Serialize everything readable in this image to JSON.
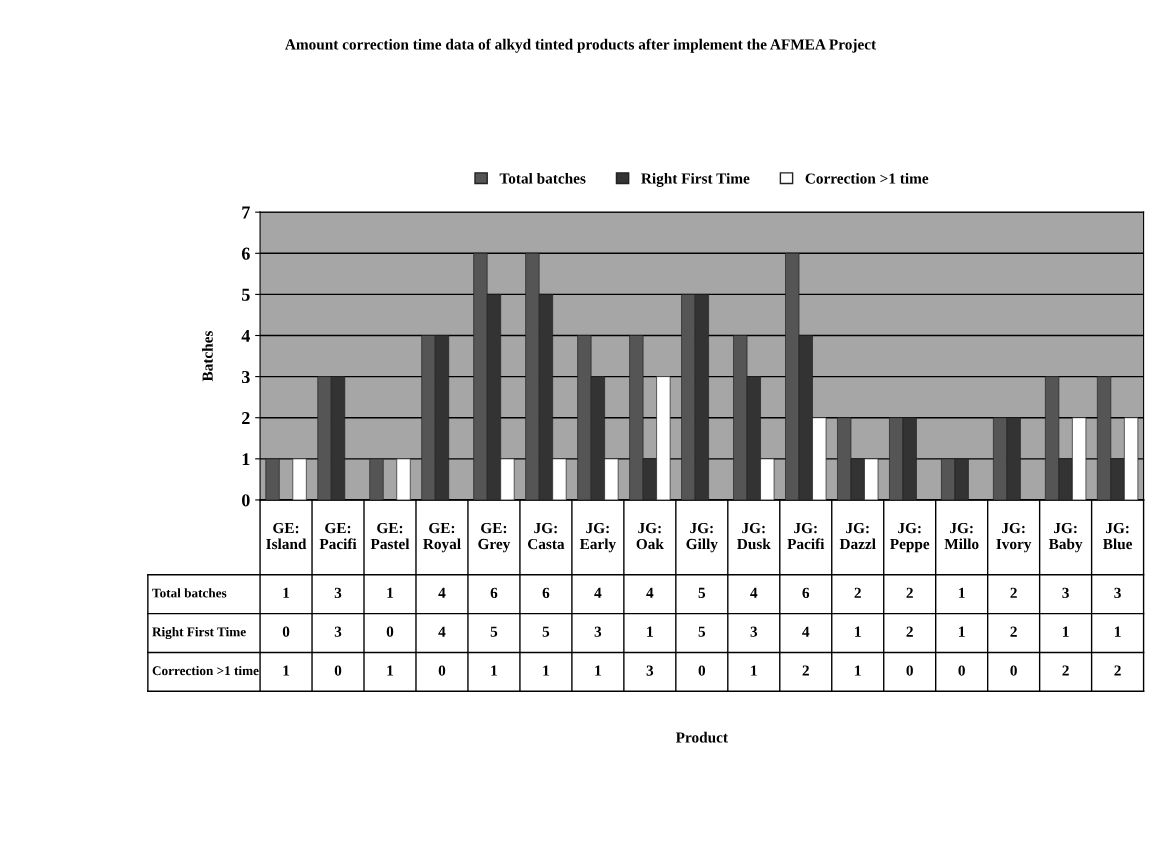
{
  "chart_data": {
    "type": "bar",
    "title": "Amount correction time data of alkyd tinted products after implement the AFMEA Project",
    "annotations": [
      "Product"
    ],
    "ylabel": "Batches",
    "categories": [
      "GE: Island",
      "GE: Pacifi",
      "GE: Pastel",
      "GE: Royal",
      "GE: Grey",
      "JG: Casta",
      "JG: Early",
      "JG: Oak",
      "JG: Gilly",
      "JG: Dusk",
      "JG: Pacifi",
      "JG: Dazzl",
      "JG: Peppe",
      "JG: Millo",
      "JG: Ivory",
      "JG: Baby",
      "JG: Blue"
    ],
    "series": [
      {
        "name": "Total batches",
        "color": "#555555",
        "values": [
          1,
          3,
          1,
          4,
          6,
          6,
          4,
          4,
          5,
          4,
          6,
          2,
          2,
          1,
          2,
          3,
          3
        ]
      },
      {
        "name": "Right First Time",
        "color": "#333333",
        "values": [
          0,
          3,
          0,
          4,
          5,
          5,
          3,
          1,
          5,
          3,
          4,
          1,
          2,
          1,
          2,
          1,
          1
        ]
      },
      {
        "name": "Correction >1 time",
        "color": "#ffffff",
        "values": [
          1,
          0,
          1,
          0,
          1,
          1,
          1,
          3,
          0,
          1,
          2,
          1,
          0,
          0,
          0,
          2,
          2
        ]
      }
    ],
    "ylim": [
      0,
      7
    ],
    "yticks": [
      0,
      1,
      2,
      3,
      4,
      5,
      6,
      7
    ],
    "grid": "y",
    "legend": "top",
    "data_labels": true
  }
}
